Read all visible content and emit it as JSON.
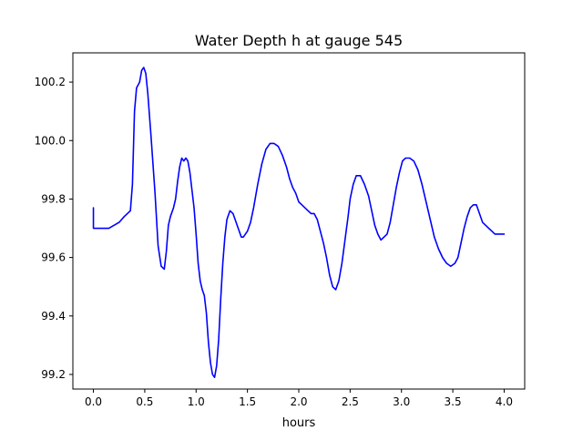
{
  "chart_data": {
    "type": "line",
    "title": "Water Depth h at gauge 545",
    "xlabel": "hours",
    "ylabel": "",
    "xlim": [
      -0.2,
      4.2
    ],
    "ylim": [
      99.15,
      100.3
    ],
    "xticks": [
      0.0,
      0.5,
      1.0,
      1.5,
      2.0,
      2.5,
      3.0,
      3.5,
      4.0
    ],
    "xtick_labels": [
      "0.0",
      "0.5",
      "1.0",
      "1.5",
      "2.0",
      "2.5",
      "3.0",
      "3.5",
      "4.0"
    ],
    "yticks": [
      99.2,
      99.4,
      99.6,
      99.8,
      100.0,
      100.2
    ],
    "ytick_labels": [
      "99.2",
      "99.4",
      "99.6",
      "99.8",
      "100.0",
      "100.2"
    ],
    "grid": false,
    "legend": "none",
    "series": [
      {
        "color": "#0000ff",
        "x": [
          0.0,
          0.0,
          0.05,
          0.1,
          0.15,
          0.2,
          0.25,
          0.3,
          0.36,
          0.38,
          0.4,
          0.42,
          0.45,
          0.47,
          0.49,
          0.51,
          0.53,
          0.56,
          0.6,
          0.63,
          0.66,
          0.69,
          0.71,
          0.73,
          0.75,
          0.78,
          0.8,
          0.82,
          0.84,
          0.86,
          0.88,
          0.9,
          0.92,
          0.94,
          0.96,
          0.98,
          1.0,
          1.02,
          1.04,
          1.06,
          1.08,
          1.1,
          1.12,
          1.14,
          1.16,
          1.18,
          1.2,
          1.22,
          1.24,
          1.26,
          1.28,
          1.3,
          1.33,
          1.36,
          1.39,
          1.42,
          1.44,
          1.46,
          1.48,
          1.5,
          1.53,
          1.56,
          1.6,
          1.64,
          1.68,
          1.72,
          1.76,
          1.8,
          1.84,
          1.88,
          1.91,
          1.94,
          1.97,
          2.0,
          2.03,
          2.06,
          2.09,
          2.12,
          2.15,
          2.18,
          2.21,
          2.24,
          2.27,
          2.3,
          2.33,
          2.36,
          2.39,
          2.42,
          2.45,
          2.48,
          2.5,
          2.53,
          2.56,
          2.6,
          2.64,
          2.68,
          2.71,
          2.74,
          2.77,
          2.8,
          2.83,
          2.86,
          2.89,
          2.92,
          2.95,
          2.98,
          3.01,
          3.04,
          3.08,
          3.12,
          3.16,
          3.2,
          3.24,
          3.28,
          3.32,
          3.36,
          3.4,
          3.44,
          3.48,
          3.52,
          3.55,
          3.58,
          3.61,
          3.64,
          3.67,
          3.7,
          3.73,
          3.76,
          3.79,
          3.82,
          3.85,
          3.88,
          3.91,
          3.94,
          3.97,
          4.0
        ],
        "y": [
          99.77,
          99.7,
          99.7,
          99.7,
          99.7,
          99.71,
          99.72,
          99.74,
          99.76,
          99.85,
          100.1,
          100.18,
          100.2,
          100.24,
          100.25,
          100.23,
          100.16,
          100.02,
          99.82,
          99.64,
          99.57,
          99.56,
          99.62,
          99.71,
          99.74,
          99.77,
          99.8,
          99.86,
          99.91,
          99.94,
          99.93,
          99.94,
          99.93,
          99.89,
          99.83,
          99.77,
          99.68,
          99.58,
          99.52,
          99.49,
          99.47,
          99.41,
          99.31,
          99.24,
          99.2,
          99.19,
          99.23,
          99.32,
          99.46,
          99.58,
          99.67,
          99.73,
          99.76,
          99.75,
          99.72,
          99.69,
          99.67,
          99.67,
          99.68,
          99.69,
          99.72,
          99.77,
          99.85,
          99.92,
          99.97,
          99.99,
          99.99,
          99.98,
          99.95,
          99.91,
          99.87,
          99.84,
          99.82,
          99.79,
          99.78,
          99.77,
          99.76,
          99.75,
          99.75,
          99.73,
          99.69,
          99.65,
          99.6,
          99.54,
          99.5,
          99.49,
          99.52,
          99.58,
          99.66,
          99.74,
          99.8,
          99.85,
          99.88,
          99.88,
          99.85,
          99.81,
          99.76,
          99.71,
          99.68,
          99.66,
          99.67,
          99.68,
          99.72,
          99.78,
          99.84,
          99.89,
          99.93,
          99.94,
          99.94,
          99.93,
          99.9,
          99.85,
          99.79,
          99.73,
          99.67,
          99.63,
          99.6,
          99.58,
          99.57,
          99.58,
          99.6,
          99.65,
          99.7,
          99.74,
          99.77,
          99.78,
          99.78,
          99.75,
          99.72,
          99.71,
          99.7,
          99.69,
          99.68,
          99.68,
          99.68,
          99.68
        ]
      }
    ]
  }
}
